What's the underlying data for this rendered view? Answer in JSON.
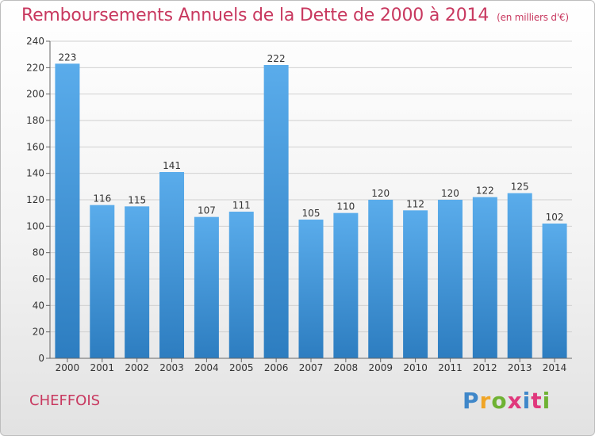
{
  "header": {
    "title": "Remboursements Annuels de la Dette de 2000 à 2014",
    "subtitle": "(en milliers d'€)"
  },
  "footer": {
    "place": "CHEFFOIS",
    "brand": "Proxiti"
  },
  "colors": {
    "title": "#c8385f",
    "bar_top": "#5aaceb",
    "bar_bottom": "#2d7dc0",
    "grid": "#d0d0d0",
    "brand_letters": [
      "#3f87c9",
      "#f0a526",
      "#6fb233",
      "#e0387c",
      "#3f87c9",
      "#e0387c",
      "#6fb233"
    ]
  },
  "chart_data": {
    "type": "bar",
    "categories": [
      "2000",
      "2001",
      "2002",
      "2003",
      "2004",
      "2005",
      "2006",
      "2007",
      "2008",
      "2009",
      "2010",
      "2011",
      "2012",
      "2013",
      "2014"
    ],
    "values": [
      223,
      116,
      115,
      141,
      107,
      111,
      222,
      105,
      110,
      120,
      112,
      120,
      122,
      125,
      102
    ],
    "title": "Remboursements Annuels de la Dette de 2000 à 2014",
    "ylim": [
      0,
      240
    ],
    "yticks": [
      0,
      20,
      40,
      60,
      80,
      100,
      120,
      140,
      160,
      180,
      200,
      220,
      240
    ],
    "grid": true,
    "data_labels": true
  }
}
